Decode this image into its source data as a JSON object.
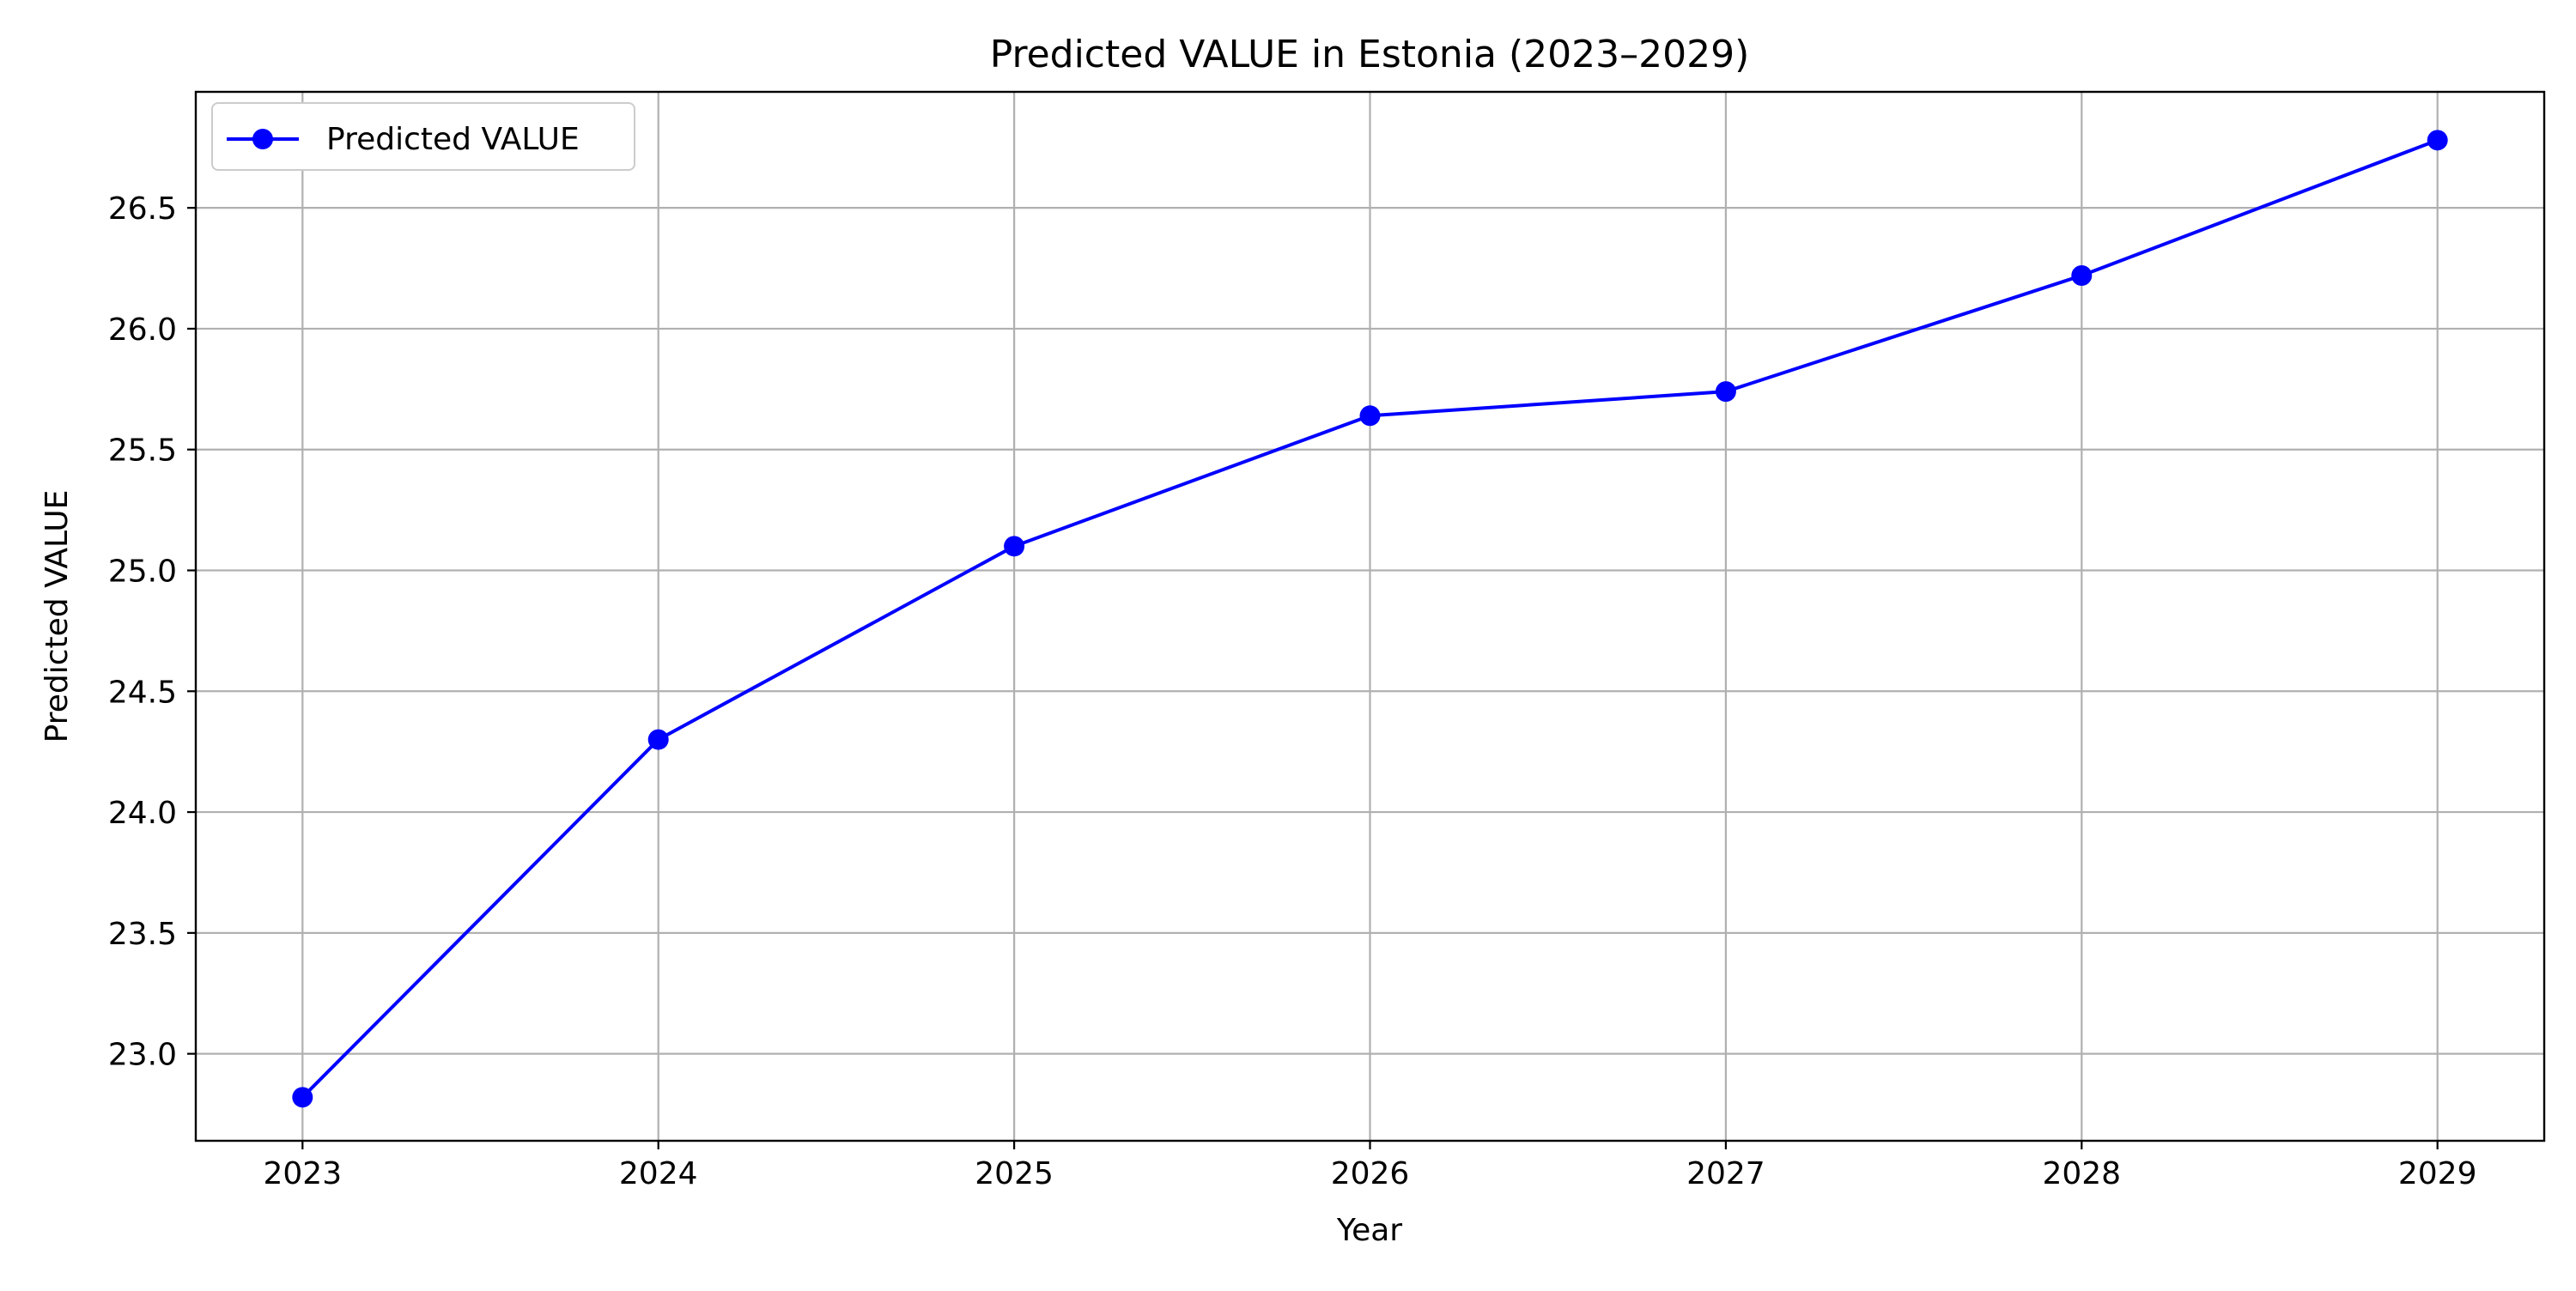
{
  "chart_data": {
    "type": "line",
    "title": "Predicted VALUE in Estonia (2023–2029)",
    "xlabel": "Year",
    "ylabel": "Predicted VALUE",
    "x": [
      2023,
      2024,
      2025,
      2026,
      2027,
      2028,
      2029
    ],
    "x_tick_labels": [
      "2023",
      "2024",
      "2025",
      "2026",
      "2027",
      "2028",
      "2029"
    ],
    "y_ticks": [
      23.0,
      23.5,
      24.0,
      24.5,
      25.0,
      25.5,
      26.0,
      26.5
    ],
    "y_tick_labels": [
      "23.0",
      "23.5",
      "24.0",
      "24.5",
      "25.0",
      "25.5",
      "26.0",
      "26.5"
    ],
    "xlim": [
      2022.7,
      2029.3
    ],
    "ylim": [
      22.64,
      26.98
    ],
    "grid": true,
    "legend_position": "top-left",
    "series": [
      {
        "name": "Predicted VALUE",
        "color": "#0000ff",
        "marker": "circle",
        "values": [
          22.82,
          24.3,
          25.1,
          25.64,
          25.74,
          26.22,
          26.78
        ]
      }
    ]
  }
}
